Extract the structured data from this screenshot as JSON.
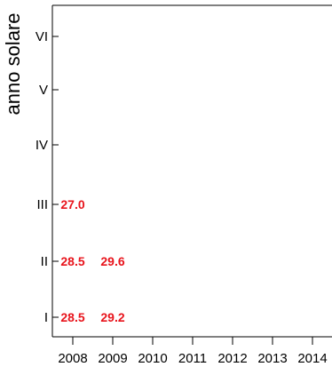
{
  "chart_data": {
    "type": "table",
    "ylabel": "anno solare",
    "xlabel": "",
    "title": "",
    "x_categories": [
      "2008",
      "2009",
      "2010",
      "2011",
      "2012",
      "2013",
      "2014"
    ],
    "y_categories": [
      "I",
      "II",
      "III",
      "IV",
      "V",
      "VI"
    ],
    "cells": [
      {
        "x": "2008",
        "y": "I",
        "label": "28.5"
      },
      {
        "x": "2009",
        "y": "I",
        "label": "29.2"
      },
      {
        "x": "2008",
        "y": "II",
        "label": "28.5"
      },
      {
        "x": "2009",
        "y": "II",
        "label": "29.6"
      },
      {
        "x": "2008",
        "y": "III",
        "label": "27.0"
      }
    ],
    "label_color": "#e8141c",
    "grid": false
  }
}
